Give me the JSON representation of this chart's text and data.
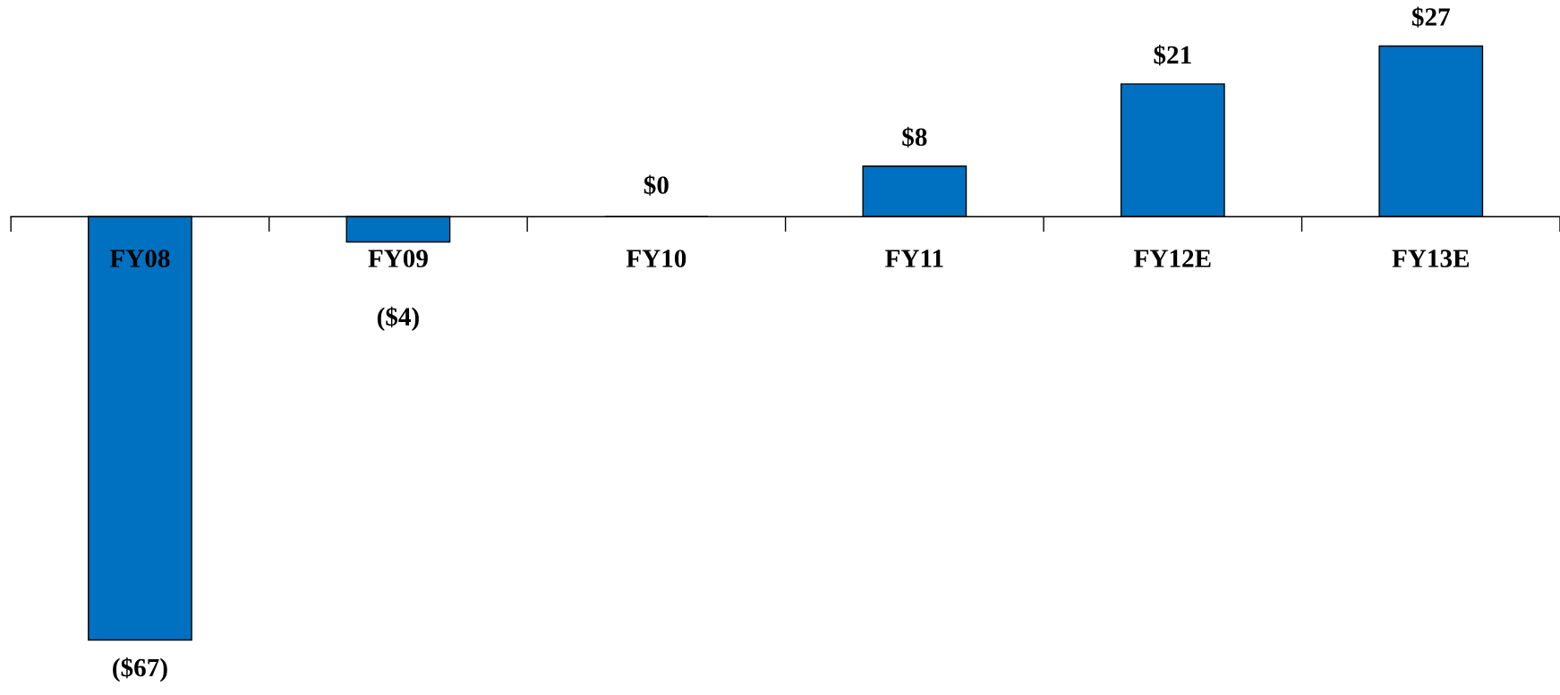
{
  "chart_data": {
    "type": "bar",
    "categories": [
      "FY08",
      "FY09",
      "FY10",
      "FY11",
      "FY12E",
      "FY13E"
    ],
    "values": [
      -67,
      -4,
      0,
      8,
      21,
      27
    ],
    "value_labels": [
      "($67)",
      "($4)",
      "$0",
      "$8",
      "$21",
      "$27"
    ],
    "color": "#0070c0"
  }
}
